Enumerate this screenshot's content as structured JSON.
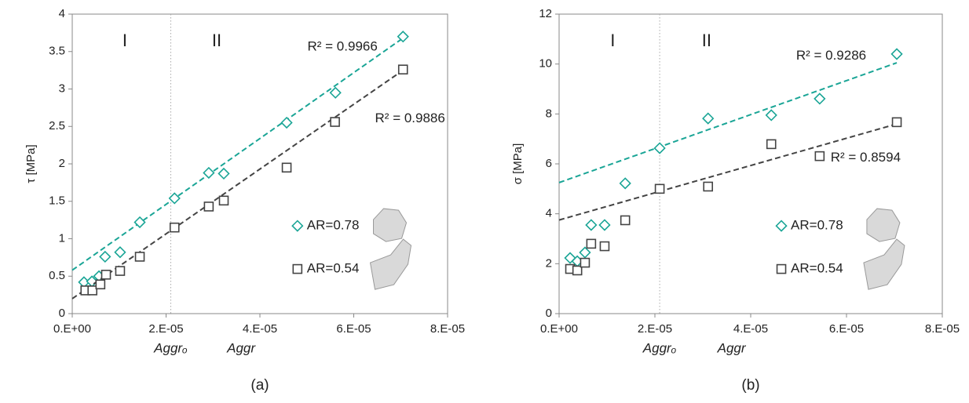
{
  "chart_data": [
    {
      "type": "scatter",
      "caption": "(a)",
      "y_label": "τ [MPa]",
      "x_label": "Aggr",
      "marker_label": "Aggrₒ",
      "marker_x": 2.1e-05,
      "regions": [
        "I",
        "II"
      ],
      "xlim": [
        0,
        8e-05
      ],
      "xticks": [
        {
          "value": 0,
          "label": "0.E+00"
        },
        {
          "value": 2e-05,
          "label": "2.E-05"
        },
        {
          "value": 4e-05,
          "label": "4.E-05"
        },
        {
          "value": 6e-05,
          "label": "6.E-05"
        },
        {
          "value": 8e-05,
          "label": "8.E-05"
        }
      ],
      "ylim": [
        0,
        4
      ],
      "yticks": [
        0,
        0.5,
        1,
        1.5,
        2,
        2.5,
        3,
        3.5,
        4
      ],
      "series": [
        {
          "name": "AR=0.78",
          "color": "#1aa596",
          "marker": "diamond",
          "r2_label": "R² = 0.9966",
          "x": [
            2.5e-06,
            4.2e-06,
            5.7e-06,
            7e-06,
            1.02e-05,
            1.44e-05,
            2.18e-05,
            2.91e-05,
            3.23e-05,
            4.57e-05,
            5.61e-05,
            7.05e-05
          ],
          "values": [
            0.42,
            0.43,
            0.5,
            0.76,
            0.82,
            1.22,
            1.54,
            1.88,
            1.87,
            2.55,
            2.95,
            3.7
          ],
          "fit": {
            "x": [
              0,
              7.05e-05
            ],
            "values": [
              0.58,
              3.68
            ]
          }
        },
        {
          "name": "AR=0.54",
          "color": "#444444",
          "marker": "square",
          "r2_label": "R² = 0.9886",
          "x": [
            2.8e-06,
            4.3e-06,
            6e-06,
            7.2e-06,
            1.02e-05,
            1.44e-05,
            2.18e-05,
            2.91e-05,
            3.23e-05,
            4.57e-05,
            5.6e-05,
            7.05e-05
          ],
          "values": [
            0.31,
            0.31,
            0.39,
            0.52,
            0.57,
            0.76,
            1.15,
            1.43,
            1.51,
            1.95,
            2.56,
            3.26
          ],
          "fit": {
            "x": [
              0,
              7.05e-05
            ],
            "values": [
              0.2,
              3.25
            ]
          }
        }
      ]
    },
    {
      "type": "scatter",
      "caption": "(b)",
      "y_label": "σ [MPa]",
      "x_label": "Aggr",
      "marker_label": "Aggrₒ",
      "marker_x": 2.1e-05,
      "regions": [
        "I",
        "II"
      ],
      "xlim": [
        0,
        8e-05
      ],
      "xticks": [
        {
          "value": 0,
          "label": "0.E+00"
        },
        {
          "value": 2e-05,
          "label": "2.E-05"
        },
        {
          "value": 4e-05,
          "label": "4.E-05"
        },
        {
          "value": 6e-05,
          "label": "6.E-05"
        },
        {
          "value": 8e-05,
          "label": "8.E-05"
        }
      ],
      "ylim": [
        0,
        12
      ],
      "yticks": [
        0,
        2,
        4,
        6,
        8,
        10,
        12
      ],
      "series": [
        {
          "name": "AR=0.78",
          "color": "#1aa596",
          "marker": "diamond",
          "r2_label": "R² = 0.9286",
          "x": [
            2.3e-06,
            3.8e-06,
            5.4e-06,
            6.7e-06,
            9.5e-06,
            1.38e-05,
            2.1e-05,
            3.11e-05,
            4.43e-05,
            5.44e-05,
            7.05e-05
          ],
          "values": [
            2.23,
            2.1,
            2.45,
            3.55,
            3.55,
            5.22,
            6.63,
            7.82,
            7.95,
            8.61,
            10.4
          ],
          "fit": {
            "x": [
              0,
              7.05e-05
            ],
            "values": [
              5.25,
              10.05
            ]
          }
        },
        {
          "name": "AR=0.54",
          "color": "#444444",
          "marker": "square",
          "r2_label": "R² = 0.8594",
          "x": [
            2.3e-06,
            3.8e-06,
            5.4e-06,
            6.7e-06,
            9.5e-06,
            1.38e-05,
            2.1e-05,
            3.11e-05,
            4.43e-05,
            5.44e-05,
            7.05e-05
          ],
          "values": [
            1.79,
            1.73,
            2.04,
            2.8,
            2.7,
            3.74,
            5.0,
            5.09,
            6.79,
            6.31,
            7.67
          ],
          "fit": {
            "x": [
              0,
              7.05e-05
            ],
            "values": [
              3.75,
              7.6
            ]
          }
        }
      ]
    }
  ]
}
